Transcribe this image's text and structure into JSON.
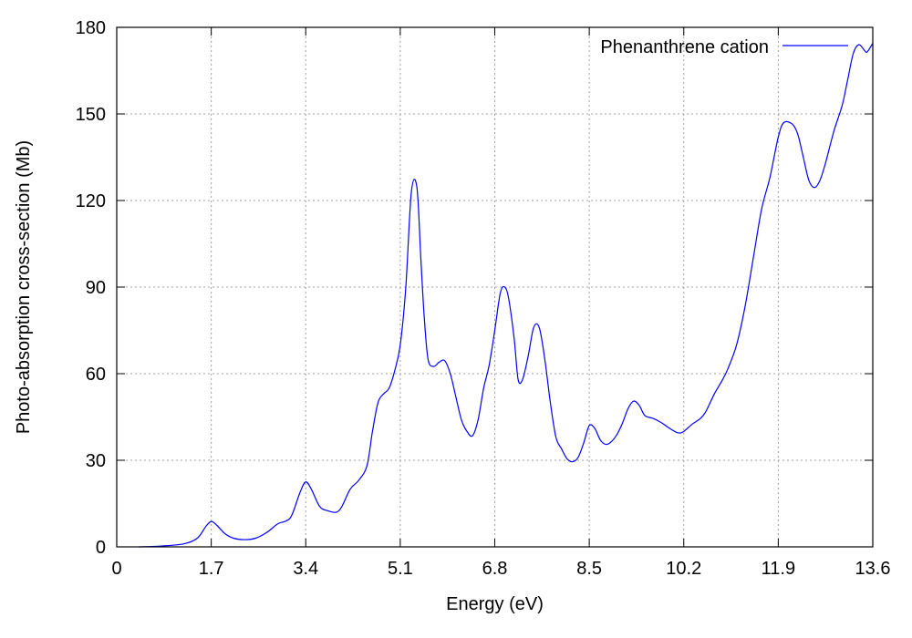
{
  "chart_data": {
    "type": "line",
    "xlabel": "Energy (eV)",
    "ylabel": "Photo-absorption cross-section (Mb)",
    "xlim": [
      0,
      13.6
    ],
    "ylim": [
      0,
      180
    ],
    "grid": true,
    "legend_position": "top-right",
    "x_ticks": [
      "0",
      "1.7",
      "3.4",
      "5.1",
      "6.8",
      "8.5",
      "10.2",
      "11.9",
      "13.6"
    ],
    "y_ticks": [
      "0",
      "30",
      "60",
      "90",
      "120",
      "150",
      "180"
    ],
    "series": [
      {
        "name": "Phenanthrene cation",
        "color": "#0000ff",
        "points": [
          [
            0.4,
            0.0
          ],
          [
            0.8,
            0.3
          ],
          [
            1.2,
            1.0
          ],
          [
            1.45,
            3.0
          ],
          [
            1.6,
            7.0
          ],
          [
            1.7,
            8.8
          ],
          [
            1.8,
            7.5
          ],
          [
            1.95,
            4.5
          ],
          [
            2.1,
            3.0
          ],
          [
            2.3,
            2.5
          ],
          [
            2.5,
            3.0
          ],
          [
            2.7,
            5.0
          ],
          [
            2.9,
            8.0
          ],
          [
            3.05,
            9.0
          ],
          [
            3.15,
            11.0
          ],
          [
            3.3,
            19.0
          ],
          [
            3.4,
            22.5
          ],
          [
            3.5,
            20.0
          ],
          [
            3.65,
            14.0
          ],
          [
            3.8,
            12.5
          ],
          [
            3.95,
            12.0
          ],
          [
            4.05,
            14.0
          ],
          [
            4.2,
            20.0
          ],
          [
            4.35,
            23.0
          ],
          [
            4.5,
            28.0
          ],
          [
            4.6,
            40.0
          ],
          [
            4.7,
            50.0
          ],
          [
            4.8,
            53.0
          ],
          [
            4.9,
            55.0
          ],
          [
            5.0,
            61.0
          ],
          [
            5.1,
            70.0
          ],
          [
            5.2,
            90.0
          ],
          [
            5.3,
            123.0
          ],
          [
            5.4,
            124.5
          ],
          [
            5.47,
            100.0
          ],
          [
            5.53,
            80.0
          ],
          [
            5.6,
            65.0
          ],
          [
            5.7,
            62.5
          ],
          [
            5.8,
            64.0
          ],
          [
            5.9,
            64.5
          ],
          [
            6.0,
            60.0
          ],
          [
            6.1,
            52.0
          ],
          [
            6.2,
            44.0
          ],
          [
            6.3,
            40.0
          ],
          [
            6.4,
            38.5
          ],
          [
            6.5,
            44.0
          ],
          [
            6.6,
            55.0
          ],
          [
            6.7,
            63.0
          ],
          [
            6.8,
            75.0
          ],
          [
            6.9,
            88.0
          ],
          [
            6.98,
            90.0
          ],
          [
            7.05,
            86.0
          ],
          [
            7.15,
            72.0
          ],
          [
            7.22,
            58.0
          ],
          [
            7.3,
            58.0
          ],
          [
            7.4,
            66.0
          ],
          [
            7.5,
            76.0
          ],
          [
            7.6,
            76.0
          ],
          [
            7.7,
            65.0
          ],
          [
            7.8,
            50.0
          ],
          [
            7.9,
            38.0
          ],
          [
            8.0,
            34.0
          ],
          [
            8.1,
            30.5
          ],
          [
            8.2,
            29.5
          ],
          [
            8.3,
            31.0
          ],
          [
            8.4,
            36.0
          ],
          [
            8.5,
            42.0
          ],
          [
            8.6,
            41.0
          ],
          [
            8.7,
            37.0
          ],
          [
            8.8,
            35.5
          ],
          [
            8.9,
            36.5
          ],
          [
            9.0,
            39.0
          ],
          [
            9.1,
            43.0
          ],
          [
            9.2,
            48.0
          ],
          [
            9.3,
            50.5
          ],
          [
            9.4,
            49.0
          ],
          [
            9.5,
            45.5
          ],
          [
            9.65,
            44.5
          ],
          [
            9.8,
            43.0
          ],
          [
            9.95,
            41.0
          ],
          [
            10.1,
            39.5
          ],
          [
            10.2,
            40.0
          ],
          [
            10.35,
            42.5
          ],
          [
            10.5,
            44.5
          ],
          [
            10.6,
            47.0
          ],
          [
            10.75,
            53.0
          ],
          [
            10.9,
            58.0
          ],
          [
            11.0,
            62.0
          ],
          [
            11.15,
            70.0
          ],
          [
            11.3,
            83.0
          ],
          [
            11.45,
            100.0
          ],
          [
            11.6,
            117.0
          ],
          [
            11.75,
            128.0
          ],
          [
            11.9,
            142.0
          ],
          [
            12.0,
            147.0
          ],
          [
            12.15,
            146.5
          ],
          [
            12.25,
            143.0
          ],
          [
            12.35,
            135.0
          ],
          [
            12.45,
            127.0
          ],
          [
            12.55,
            124.5
          ],
          [
            12.65,
            127.0
          ],
          [
            12.75,
            133.0
          ],
          [
            12.9,
            144.0
          ],
          [
            13.05,
            153.0
          ],
          [
            13.15,
            162.0
          ],
          [
            13.25,
            171.0
          ],
          [
            13.35,
            174.0
          ],
          [
            13.45,
            172.0
          ],
          [
            13.5,
            171.5
          ],
          [
            13.6,
            174.5
          ]
        ]
      }
    ]
  }
}
